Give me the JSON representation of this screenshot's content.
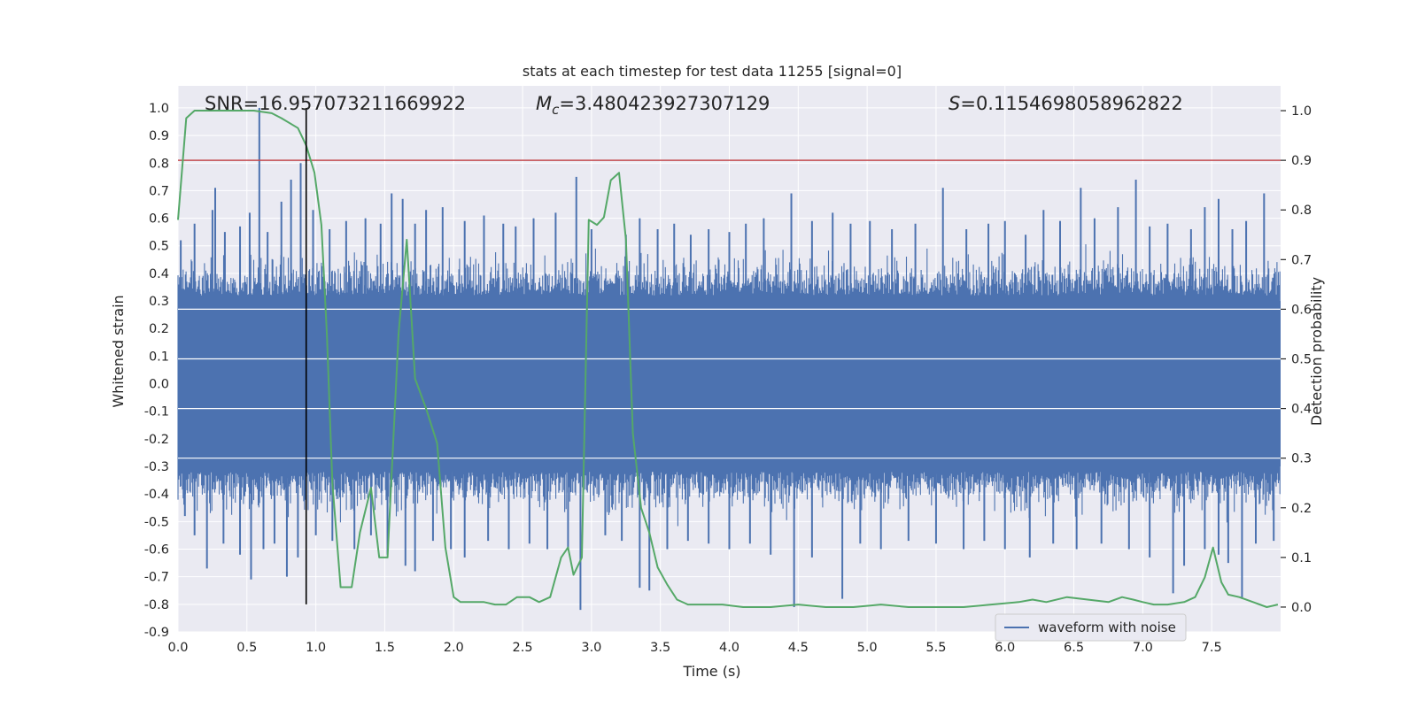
{
  "chart_data": {
    "type": "line",
    "title": "stats at each timestep for test data 11255 [signal=0]",
    "xlabel": "Time (s)",
    "ylabel": "Whitened strain",
    "y2label": "Detection probability",
    "xlim": [
      0.0,
      8.0
    ],
    "ylim": [
      -0.9,
      1.08
    ],
    "y2lim": [
      -0.05,
      1.05
    ],
    "xticks": [
      0.0,
      0.5,
      1.0,
      1.5,
      2.0,
      2.5,
      3.0,
      3.5,
      4.0,
      4.5,
      5.0,
      5.5,
      6.0,
      6.5,
      7.0,
      7.5
    ],
    "yticks": [
      -0.9,
      -0.8,
      -0.7,
      -0.6,
      -0.5,
      -0.4,
      -0.3,
      -0.2,
      -0.1,
      0.0,
      0.1,
      0.2,
      0.3,
      0.4,
      0.5,
      0.6,
      0.7,
      0.8,
      0.9,
      1.0
    ],
    "y2ticks": [
      0.0,
      0.1,
      0.2,
      0.3,
      0.4,
      0.5,
      0.6,
      0.7,
      0.8,
      0.9,
      1.0
    ],
    "grid": true,
    "legend": {
      "position": "lower-right",
      "entries": [
        "waveform with noise"
      ]
    },
    "annotations": {
      "snr": "SNR=16.957073211669922",
      "mc_symbol": "M",
      "mc_sub": "c",
      "mc_value": "=3.480423927307129",
      "s_symbol": "S",
      "s_value": "=0.1154698058962822"
    },
    "threshold_y2": 0.9,
    "marker_time": 0.93,
    "waveform": {
      "name": "waveform with noise",
      "color": "#4c72b0",
      "dense_band": [
        -0.3,
        0.3
      ],
      "peaks_pos": [
        [
          0.02,
          0.52
        ],
        [
          0.12,
          0.58
        ],
        [
          0.25,
          0.63
        ],
        [
          0.27,
          0.71
        ],
        [
          0.34,
          0.55
        ],
        [
          0.45,
          0.57
        ],
        [
          0.52,
          0.62
        ],
        [
          0.59,
          1.0
        ],
        [
          0.65,
          0.55
        ],
        [
          0.75,
          0.66
        ],
        [
          0.82,
          0.74
        ],
        [
          0.89,
          0.8
        ],
        [
          0.98,
          0.63
        ],
        [
          1.1,
          0.56
        ],
        [
          1.22,
          0.59
        ],
        [
          1.36,
          0.6
        ],
        [
          1.47,
          0.58
        ],
        [
          1.55,
          0.69
        ],
        [
          1.63,
          0.67
        ],
        [
          1.72,
          0.58
        ],
        [
          1.8,
          0.63
        ],
        [
          1.92,
          0.64
        ],
        [
          2.08,
          0.59
        ],
        [
          2.22,
          0.61
        ],
        [
          2.36,
          0.58
        ],
        [
          2.45,
          0.57
        ],
        [
          2.58,
          0.6
        ],
        [
          2.74,
          0.62
        ],
        [
          2.89,
          0.75
        ],
        [
          3.0,
          0.56
        ],
        [
          3.25,
          0.54
        ],
        [
          3.35,
          0.6
        ],
        [
          3.48,
          0.56
        ],
        [
          3.6,
          0.58
        ],
        [
          3.72,
          0.54
        ],
        [
          3.85,
          0.56
        ],
        [
          4.0,
          0.55
        ],
        [
          4.12,
          0.58
        ],
        [
          4.25,
          0.6
        ],
        [
          4.45,
          0.69
        ],
        [
          4.6,
          0.59
        ],
        [
          4.75,
          0.62
        ],
        [
          4.88,
          0.58
        ],
        [
          5.02,
          0.59
        ],
        [
          5.18,
          0.56
        ],
        [
          5.35,
          0.58
        ],
        [
          5.55,
          0.71
        ],
        [
          5.72,
          0.56
        ],
        [
          5.88,
          0.58
        ],
        [
          6.0,
          0.59
        ],
        [
          6.15,
          0.54
        ],
        [
          6.28,
          0.63
        ],
        [
          6.4,
          0.59
        ],
        [
          6.55,
          0.71
        ],
        [
          6.65,
          0.6
        ],
        [
          6.82,
          0.64
        ],
        [
          6.95,
          0.74
        ],
        [
          7.05,
          0.57
        ],
        [
          7.18,
          0.58
        ],
        [
          7.35,
          0.56
        ],
        [
          7.45,
          0.64
        ],
        [
          7.55,
          0.67
        ],
        [
          7.65,
          0.56
        ],
        [
          7.75,
          0.59
        ],
        [
          7.88,
          0.69
        ]
      ],
      "peaks_neg": [
        [
          0.05,
          -0.48
        ],
        [
          0.12,
          -0.55
        ],
        [
          0.21,
          -0.67
        ],
        [
          0.33,
          -0.58
        ],
        [
          0.45,
          -0.62
        ],
        [
          0.53,
          -0.71
        ],
        [
          0.62,
          -0.6
        ],
        [
          0.7,
          -0.58
        ],
        [
          0.79,
          -0.7
        ],
        [
          0.87,
          -0.63
        ],
        [
          1.0,
          -0.55
        ],
        [
          1.12,
          -0.57
        ],
        [
          1.28,
          -0.6
        ],
        [
          1.4,
          -0.55
        ],
        [
          1.52,
          -0.62
        ],
        [
          1.65,
          -0.66
        ],
        [
          1.72,
          -0.68
        ],
        [
          1.85,
          -0.57
        ],
        [
          1.98,
          -0.6
        ],
        [
          2.08,
          -0.63
        ],
        [
          2.25,
          -0.57
        ],
        [
          2.4,
          -0.6
        ],
        [
          2.55,
          -0.58
        ],
        [
          2.68,
          -0.6
        ],
        [
          2.83,
          -0.6
        ],
        [
          2.92,
          -0.82
        ],
        [
          3.1,
          -0.55
        ],
        [
          3.22,
          -0.57
        ],
        [
          3.35,
          -0.74
        ],
        [
          3.42,
          -0.75
        ],
        [
          3.55,
          -0.6
        ],
        [
          3.7,
          -0.57
        ],
        [
          3.85,
          -0.58
        ],
        [
          4.0,
          -0.6
        ],
        [
          4.15,
          -0.58
        ],
        [
          4.3,
          -0.62
        ],
        [
          4.47,
          -0.81
        ],
        [
          4.6,
          -0.63
        ],
        [
          4.82,
          -0.78
        ],
        [
          4.95,
          -0.58
        ],
        [
          5.1,
          -0.6
        ],
        [
          5.3,
          -0.57
        ],
        [
          5.5,
          -0.58
        ],
        [
          5.7,
          -0.6
        ],
        [
          5.85,
          -0.57
        ],
        [
          6.0,
          -0.6
        ],
        [
          6.18,
          -0.63
        ],
        [
          6.35,
          -0.58
        ],
        [
          6.52,
          -0.6
        ],
        [
          6.7,
          -0.58
        ],
        [
          6.9,
          -0.6
        ],
        [
          7.05,
          -0.63
        ],
        [
          7.22,
          -0.76
        ],
        [
          7.3,
          -0.66
        ],
        [
          7.45,
          -0.6
        ],
        [
          7.55,
          -0.62
        ],
        [
          7.62,
          -0.65
        ],
        [
          7.72,
          -0.78
        ],
        [
          7.82,
          -0.58
        ],
        [
          7.95,
          -0.57
        ]
      ]
    },
    "probability": {
      "color": "#55a868",
      "x": [
        0.0,
        0.06,
        0.12,
        0.2,
        0.3,
        0.42,
        0.55,
        0.68,
        0.75,
        0.87,
        0.93,
        0.99,
        1.04,
        1.08,
        1.12,
        1.18,
        1.26,
        1.32,
        1.4,
        1.46,
        1.52,
        1.6,
        1.66,
        1.72,
        1.8,
        1.88,
        1.94,
        2.0,
        2.05,
        2.12,
        2.22,
        2.3,
        2.38,
        2.46,
        2.55,
        2.62,
        2.7,
        2.78,
        2.83,
        2.87,
        2.93,
        2.98,
        3.04,
        3.09,
        3.14,
        3.2,
        3.25,
        3.3,
        3.36,
        3.42,
        3.48,
        3.55,
        3.62,
        3.7,
        3.8,
        3.95,
        4.1,
        4.3,
        4.5,
        4.7,
        4.9,
        5.1,
        5.3,
        5.5,
        5.7,
        5.9,
        6.1,
        6.2,
        6.3,
        6.45,
        6.6,
        6.75,
        6.85,
        6.93,
        7.0,
        7.08,
        7.18,
        7.3,
        7.38,
        7.45,
        7.51,
        7.57,
        7.62,
        7.7,
        7.8,
        7.9,
        7.98
      ],
      "y": [
        0.78,
        0.985,
        1.0,
        1.0,
        1.0,
        1.0,
        1.0,
        0.995,
        0.985,
        0.965,
        0.93,
        0.875,
        0.77,
        0.55,
        0.25,
        0.04,
        0.04,
        0.15,
        0.24,
        0.1,
        0.1,
        0.55,
        0.74,
        0.46,
        0.4,
        0.33,
        0.12,
        0.02,
        0.01,
        0.01,
        0.01,
        0.005,
        0.005,
        0.02,
        0.02,
        0.01,
        0.02,
        0.1,
        0.12,
        0.065,
        0.1,
        0.78,
        0.77,
        0.785,
        0.86,
        0.875,
        0.74,
        0.35,
        0.2,
        0.15,
        0.08,
        0.045,
        0.015,
        0.005,
        0.005,
        0.005,
        0.0,
        0.0,
        0.005,
        0.0,
        0.0,
        0.005,
        0.0,
        0.0,
        0.0,
        0.005,
        0.01,
        0.015,
        0.01,
        0.02,
        0.015,
        0.01,
        0.02,
        0.015,
        0.01,
        0.005,
        0.005,
        0.01,
        0.02,
        0.06,
        0.12,
        0.05,
        0.025,
        0.02,
        0.01,
        0.0,
        0.005
      ]
    }
  }
}
